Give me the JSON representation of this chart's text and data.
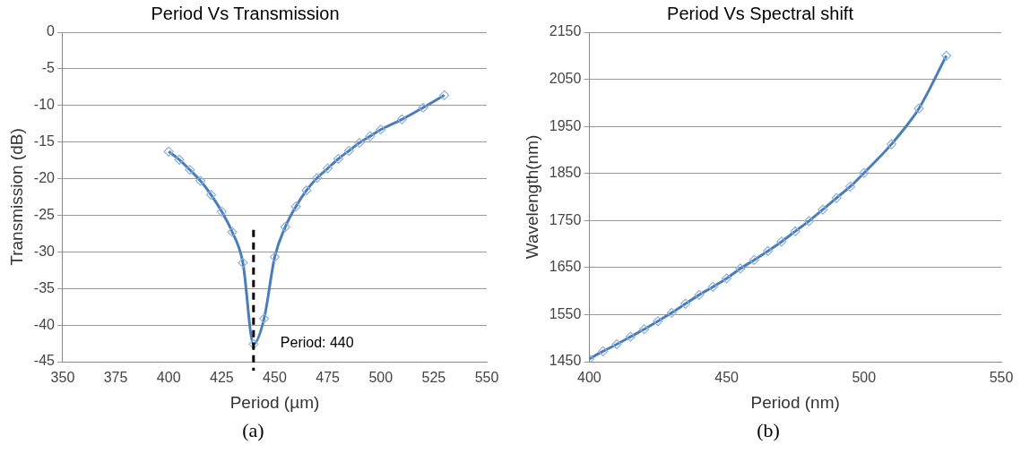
{
  "chart_data": [
    {
      "type": "line",
      "title": "Period Vs Transmission",
      "xlabel": "Period (µm)",
      "ylabel": "Transmission (dB)",
      "x": [
        400,
        405,
        410,
        415,
        420,
        425,
        430,
        435,
        440,
        445,
        450,
        455,
        460,
        465,
        470,
        475,
        480,
        485,
        490,
        495,
        500,
        510,
        520,
        530
      ],
      "series": [
        {
          "color": "#4a7ebb",
          "values": [
            -16.3,
            -17.4,
            -18.8,
            -20.3,
            -22.2,
            -24.5,
            -27.3,
            -31.5,
            -42.6,
            -39.1,
            -30.7,
            -26.6,
            -23.8,
            -21.6,
            -19.9,
            -18.6,
            -17.3,
            -16.2,
            -15.1,
            -14.2,
            -13.3,
            -11.9,
            -10.3,
            -8.6
          ]
        }
      ],
      "xlim": [
        350,
        550
      ],
      "xticks": [
        350,
        375,
        400,
        425,
        450,
        475,
        500,
        525,
        550
      ],
      "ylim": [
        -45,
        0
      ],
      "yticks": [
        0,
        -5,
        -10,
        -15,
        -20,
        -25,
        -30,
        -35,
        -40,
        -45
      ],
      "ref_lines": [
        {
          "axis": "x",
          "value": 440,
          "label": "Period: 440",
          "color": "#000000",
          "line_style": "dashed"
        }
      ],
      "annotations": [
        "(a)"
      ],
      "grid": "y",
      "marker": "diamond",
      "legend": false
    },
    {
      "type": "line",
      "title": "Period Vs Spectral shift",
      "xlabel": "Period (nm)",
      "ylabel": "Wavelength(nm)",
      "x": [
        400,
        405,
        410,
        415,
        420,
        425,
        430,
        435,
        440,
        445,
        450,
        455,
        460,
        465,
        470,
        475,
        480,
        485,
        490,
        495,
        500,
        510,
        520,
        530
      ],
      "series": [
        {
          "color": "#4a7ebb",
          "values": [
            1456,
            1472,
            1487,
            1503,
            1519,
            1536,
            1554,
            1573,
            1592,
            1609,
            1627,
            1648,
            1666,
            1685,
            1705,
            1727,
            1749,
            1773,
            1798,
            1822,
            1851,
            1912,
            1988,
            2100
          ]
        }
      ],
      "xlim": [
        400,
        550
      ],
      "xticks": [
        400,
        450,
        500,
        550
      ],
      "ylim": [
        1450,
        2150
      ],
      "yticks": [
        1450,
        1550,
        1650,
        1750,
        1850,
        1950,
        2050,
        2150
      ],
      "annotations": [
        "(b)"
      ],
      "grid": "y",
      "marker": "diamond",
      "legend": false
    }
  ]
}
